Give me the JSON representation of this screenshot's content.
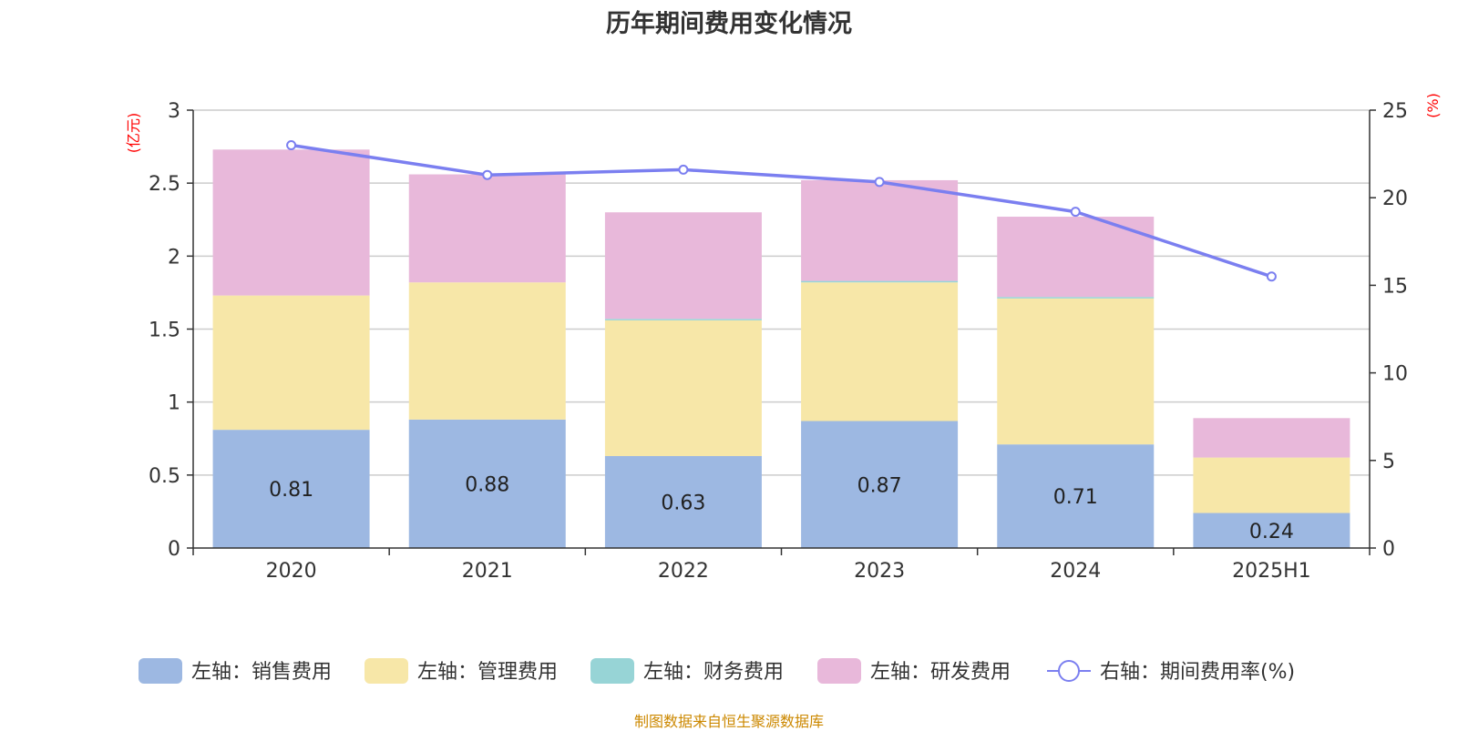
{
  "title": "历年期间费用变化情况",
  "source": "制图数据来自恒生聚源数据库",
  "chart_data": {
    "type": "bar",
    "stacked": true,
    "categories": [
      "2020",
      "2021",
      "2022",
      "2023",
      "2024",
      "2025H1"
    ],
    "y_left": {
      "unit_label": "(亿元)",
      "ylim": [
        0,
        3
      ],
      "ticks": [
        "0",
        "0.5",
        "1",
        "1.5",
        "2",
        "2.5",
        "3"
      ]
    },
    "y_right": {
      "unit_label": "(%)",
      "ylim": [
        0,
        25
      ],
      "ticks": [
        "0",
        "5",
        "10",
        "15",
        "20",
        "25"
      ]
    },
    "grid": true,
    "legend_position": "bottom",
    "series": [
      {
        "name": "左轴：销售费用",
        "type": "bar",
        "axis": "left",
        "color": "#9db8e2",
        "values": [
          0.81,
          0.88,
          0.63,
          0.87,
          0.71,
          0.24
        ],
        "labels": [
          "0.81",
          "0.88",
          "0.63",
          "0.87",
          "0.71",
          "0.24"
        ]
      },
      {
        "name": "左轴：管理费用",
        "type": "bar",
        "axis": "left",
        "color": "#f7e7a8",
        "values": [
          0.92,
          0.94,
          0.93,
          0.95,
          1.0,
          0.38
        ]
      },
      {
        "name": "左轴：财务费用",
        "type": "bar",
        "axis": "left",
        "color": "#97d4d6",
        "values": [
          0.0,
          0.0,
          0.01,
          0.01,
          0.01,
          0.0
        ]
      },
      {
        "name": "左轴：研发费用",
        "type": "bar",
        "axis": "left",
        "color": "#e8b8da",
        "values": [
          1.0,
          0.74,
          0.73,
          0.69,
          0.55,
          0.27
        ]
      },
      {
        "name": "右轴：期间费用率(%)",
        "type": "line",
        "axis": "right",
        "color": "#7b7ff0",
        "values": [
          23.0,
          21.3,
          21.6,
          20.9,
          19.2,
          15.5
        ]
      }
    ]
  }
}
